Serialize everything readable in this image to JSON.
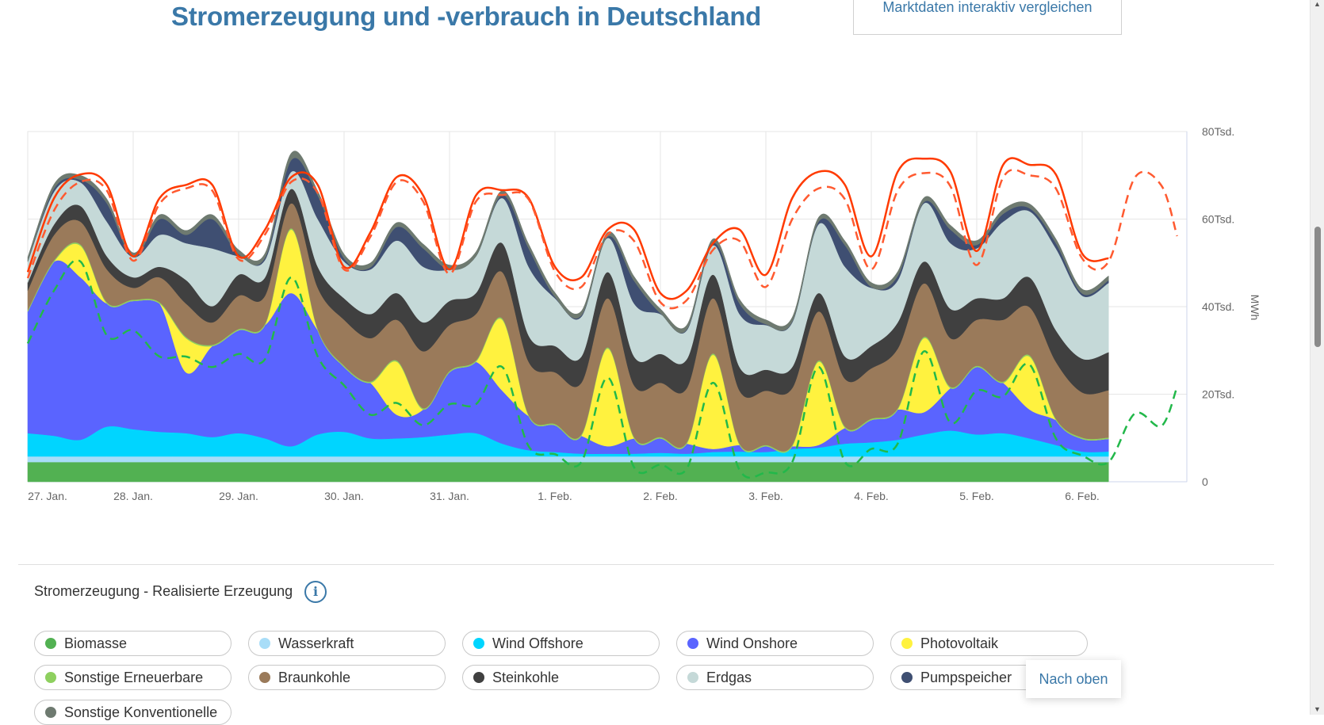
{
  "header": {
    "title": "Stromerzeugung und -verbrauch in Deutschland",
    "compare_button": "Marktdaten interaktiv vergleichen"
  },
  "section": {
    "title": "Stromerzeugung - Realisierte Erzeugung",
    "info_icon": "i"
  },
  "back_to_top": "Nach oben",
  "colors": {
    "title": "#3a78a8",
    "consumption": "#ff3a00",
    "consumption_forecast": "#ff5a30",
    "green_dashed": "#22b84a"
  },
  "chart_data": {
    "type": "area",
    "stacked": true,
    "unit": "MWh",
    "ylabel": "MWh",
    "ylim": [
      0,
      80000
    ],
    "y_ticks": [
      0,
      20000,
      40000,
      60000,
      80000
    ],
    "y_tick_labels": [
      "0",
      "20Tsd.",
      "40Tsd.",
      "60Tsd.",
      "80Tsd."
    ],
    "x_range_days": [
      0,
      11
    ],
    "x_tick_labels": [
      "27. Jan.",
      "28. Jan.",
      "29. Jan.",
      "30. Jan.",
      "31. Jan.",
      "1. Feb.",
      "2. Feb.",
      "3. Feb.",
      "4. Feb.",
      "5. Feb.",
      "6. Feb."
    ],
    "step_hours": 6,
    "value_scale": 1000,
    "grid": true,
    "series": [
      {
        "name": "Biomasse",
        "color": "#52b152",
        "values": [
          4.5,
          4.5,
          4.5,
          4.5,
          4.5,
          4.5,
          4.5,
          4.5,
          4.5,
          4.5,
          4.5,
          4.5,
          4.5,
          4.5,
          4.5,
          4.5,
          4.5,
          4.5,
          4.5,
          4.5,
          4.5,
          4.5,
          4.5,
          4.5,
          4.5,
          4.5,
          4.5,
          4.5,
          4.5,
          4.5,
          4.5,
          4.5,
          4.5,
          4.5,
          4.5,
          4.5,
          4.5,
          4.5,
          4.5,
          4.5,
          4.5,
          4.5
        ]
      },
      {
        "name": "Wasserkraft",
        "color": "#a8ddf8",
        "values": [
          1.3,
          1.3,
          1.3,
          1.3,
          1.3,
          1.3,
          1.3,
          1.3,
          1.3,
          1.3,
          1.3,
          1.3,
          1.3,
          1.3,
          1.3,
          1.3,
          1.3,
          1.3,
          1.3,
          1.3,
          1.3,
          1.3,
          1.3,
          1.3,
          1.3,
          1.3,
          1.3,
          1.3,
          1.3,
          1.3,
          1.3,
          1.3,
          1.3,
          1.3,
          1.3,
          1.3,
          1.3,
          1.3,
          1.3,
          1.3,
          1.3,
          1.3
        ]
      },
      {
        "name": "Wind Offshore",
        "color": "#00d5ff",
        "values": [
          5.3,
          4.7,
          3.8,
          6.8,
          6.2,
          5.6,
          5.3,
          4.4,
          5.3,
          4.1,
          2.3,
          5.0,
          5.6,
          4.1,
          4.1,
          4.4,
          5.0,
          5.3,
          2.9,
          1.4,
          1.0,
          0.6,
          0.6,
          0.6,
          0.8,
          0.6,
          1.0,
          1.1,
          1.0,
          1.7,
          2.0,
          2.9,
          3.2,
          3.8,
          5.0,
          5.9,
          5.0,
          5.3,
          4.1,
          2.6,
          1.1,
          1.1
        ]
      },
      {
        "name": "Wind Onshore",
        "color": "#5a64ff",
        "values": [
          27.8,
          39.8,
          37.1,
          28.1,
          29.3,
          29.3,
          13.9,
          20.8,
          23.5,
          25.9,
          35.0,
          23.8,
          14.8,
          12.7,
          5.4,
          6.3,
          14.2,
          16.3,
          12.1,
          7.8,
          6.1,
          4.1,
          1.7,
          3.5,
          3.3,
          2.3,
          0.7,
          1.5,
          1.3,
          0.6,
          0.6,
          3.6,
          5.1,
          6.9,
          5.1,
          9.7,
          15.4,
          11.5,
          6.6,
          5.7,
          2.9,
          2.9
        ]
      },
      {
        "name": "Photovoltaik",
        "color": "#fff23f",
        "values": [
          0,
          0,
          7.2,
          0,
          0,
          0,
          7.8,
          0,
          0,
          0,
          14.5,
          0,
          0,
          0,
          12.1,
          0,
          0,
          0,
          16.2,
          0,
          0,
          0,
          22.3,
          0,
          0,
          0,
          21.5,
          0,
          0,
          0,
          19.0,
          0,
          0,
          0,
          16.9,
          0,
          0,
          0,
          12.1,
          0,
          0,
          0
        ]
      },
      {
        "name": "Sonstige Erneuerbare",
        "color": "#8ed05f",
        "values": [
          0.3,
          0.3,
          0.3,
          0.3,
          0.3,
          0.3,
          0.3,
          0.3,
          0.3,
          0.3,
          0.3,
          0.3,
          0.3,
          0.3,
          0.3,
          0.3,
          0.3,
          0.3,
          0.3,
          0.3,
          0.3,
          0.3,
          0.3,
          0.3,
          0.3,
          0.3,
          0.3,
          0.3,
          0.3,
          0.3,
          0.3,
          0.3,
          0.3,
          0.3,
          0.3,
          0.3,
          0.3,
          0.3,
          0.3,
          0.3,
          0.3,
          0.3
        ]
      },
      {
        "name": "Braunkohle",
        "color": "#9a7a5a",
        "values": [
          4.5,
          5.8,
          5.2,
          7.5,
          2.7,
          5.7,
          7.6,
          5.1,
          7.6,
          6.4,
          5.7,
          9.4,
          10.5,
          9.9,
          9.3,
          13.0,
          10.5,
          10.6,
          10.6,
          12.1,
          11.8,
          11.8,
          11.2,
          11.8,
          12.4,
          12.4,
          12.6,
          12.1,
          12.4,
          13.0,
          11.2,
          10.9,
          11.5,
          13.6,
          12.2,
          11.1,
          10.5,
          14.1,
          11.0,
          13.0,
          10.3,
          10.8
        ]
      },
      {
        "name": "Steinkohle",
        "color": "#404040",
        "values": [
          1.8,
          2.4,
          3.6,
          3.0,
          2.4,
          2.4,
          5.4,
          3.7,
          4.8,
          4.2,
          3.3,
          4.8,
          4.9,
          5.5,
          6.1,
          6.6,
          5.5,
          4.8,
          6.6,
          6.0,
          6.0,
          6.0,
          6.0,
          6.6,
          6.6,
          6.6,
          5.4,
          5.4,
          4.8,
          4.8,
          4.2,
          5.1,
          5.1,
          6.0,
          5.0,
          6.7,
          4.9,
          4.9,
          6.8,
          7.2,
          7.7,
          8.7
        ]
      },
      {
        "name": "Erdgas",
        "color": "#c5d9d8",
        "values": [
          4.8,
          7.5,
          5.4,
          7.9,
          4.6,
          7.3,
          8.4,
          13.2,
          4.2,
          4.0,
          3.9,
          10.9,
          8.4,
          10.2,
          12.0,
          12.7,
          7.2,
          8.4,
          10.3,
          15.7,
          10.9,
          9.1,
          7.8,
          12.1,
          9.1,
          6.6,
          6.7,
          12.1,
          10.2,
          10.2,
          15.7,
          20.5,
          13.3,
          9.6,
          13.3,
          15.0,
          11.4,
          17.5,
          15.1,
          18.7,
          14.4,
          15.8
        ]
      },
      {
        "name": "Pumpspeicher",
        "color": "#3f4f72",
        "values": [
          0,
          0.7,
          0.6,
          4.2,
          0,
          3.6,
          1.9,
          6.7,
          0.5,
          0.5,
          2.7,
          5.4,
          0.7,
          0.5,
          3.1,
          4.2,
          0,
          0,
          0.7,
          4.2,
          0.3,
          0.3,
          0.3,
          5.2,
          0.2,
          0.2,
          0.5,
          2.4,
          0.2,
          0.2,
          0.6,
          4.9,
          0.2,
          1.0,
          0.3,
          3.1,
          0.8,
          1.8,
          0.7,
          1.2,
          0.5,
          0.6
        ]
      },
      {
        "name": "Sonstige Konventionelle",
        "color": "#6e7a70",
        "values": [
          1.0,
          1.0,
          1.0,
          1.0,
          1.0,
          1.0,
          1.0,
          1.0,
          1.0,
          1.0,
          1.6,
          1.0,
          1.0,
          1.0,
          1.0,
          1.0,
          1.0,
          1.0,
          1.0,
          1.0,
          1.0,
          1.0,
          1.0,
          1.0,
          1.0,
          1.0,
          1.0,
          1.0,
          1.0,
          1.0,
          1.0,
          1.0,
          1.0,
          1.0,
          1.0,
          1.0,
          1.0,
          1.0,
          1.0,
          1.0,
          1.0,
          1.0
        ]
      }
    ],
    "lines": [
      {
        "id": "consumption",
        "style": "solid",
        "color": "#ff3a00",
        "values": [
          47.9,
          64.8,
          70.2,
          67.8,
          51.5,
          64.8,
          67.8,
          67.8,
          51.5,
          57.6,
          69.6,
          67.8,
          49.1,
          57.0,
          69.6,
          65.4,
          48.5,
          65.4,
          66.6,
          64.8,
          49.1,
          46.7,
          57.6,
          57.6,
          43.1,
          43.7,
          54.5,
          57.6,
          47.3,
          64.8,
          70.8,
          67.8,
          51.5,
          70.8,
          73.8,
          70.8,
          52.7,
          72.4,
          72.4,
          70.2,
          52.1,
          51.0
        ]
      },
      {
        "id": "consumption-forecast",
        "style": "dashed",
        "color": "#ff5a30",
        "last_point_day": 10.9,
        "values": [
          46.5,
          62,
          68.5,
          66.5,
          50.5,
          63.5,
          67,
          66.5,
          50.8,
          56.5,
          68.5,
          66,
          48.5,
          56,
          68.5,
          64,
          47.5,
          64,
          65.5,
          64.5,
          48,
          44.5,
          56.5,
          55,
          41,
          41.5,
          53,
          55,
          44.5,
          60,
          67,
          64.5,
          48.5,
          66.5,
          70.5,
          67.5,
          49.5,
          69.5,
          70,
          67,
          51,
          50.3,
          69.5,
          67.7,
          56.1
        ]
      },
      {
        "id": "green-dashed",
        "style": "dashed",
        "color": "#22b84a",
        "last_point_day": 10.9,
        "values": [
          31.6,
          43.7,
          50.3,
          33.4,
          34.6,
          28.6,
          28.6,
          26.2,
          29.2,
          28.0,
          46.7,
          28.6,
          22.0,
          15.3,
          18.0,
          12.9,
          17.7,
          17.7,
          26.2,
          8.1,
          6.3,
          4.5,
          23.8,
          3.3,
          3.9,
          3.0,
          22.6,
          2.7,
          2.1,
          4.5,
          26.2,
          4.5,
          7.5,
          8.7,
          29.8,
          13.5,
          20.8,
          19.5,
          26.8,
          9.9,
          6.0,
          4.5,
          15.6,
          12.7,
          21.7
        ]
      }
    ]
  }
}
